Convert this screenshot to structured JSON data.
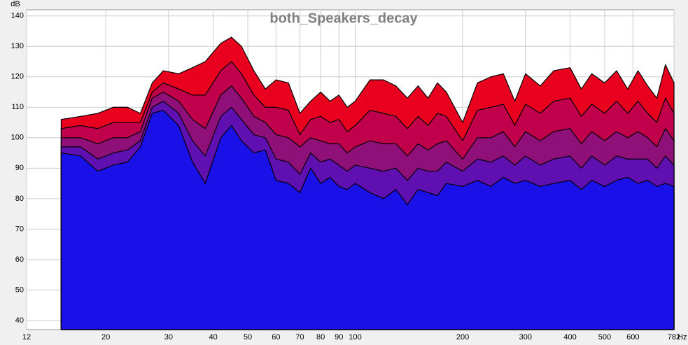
{
  "chart_data": {
    "type": "area",
    "title": "both_Speakers_decay",
    "x_label": "Hz",
    "y_label": "dB",
    "x": [
      15,
      17,
      19,
      21,
      23,
      25,
      27,
      29,
      32,
      35,
      38,
      42,
      45,
      48,
      52,
      56,
      60,
      65,
      70,
      75,
      80,
      85,
      90,
      95,
      100,
      110,
      120,
      130,
      140,
      150,
      160,
      170,
      180,
      200,
      220,
      240,
      260,
      280,
      300,
      330,
      360,
      400,
      430,
      460,
      500,
      540,
      580,
      620,
      660,
      700,
      740,
      782
    ],
    "series": [
      {
        "color": "#e8001e",
        "values": [
          106,
          107,
          108,
          110,
          110,
          108,
          118,
          122,
          121,
          123,
          125,
          131,
          133,
          130,
          122,
          116,
          119,
          118,
          108,
          112,
          115,
          112,
          114,
          110,
          112,
          119,
          119,
          117,
          113,
          117,
          113,
          118,
          115,
          105,
          118,
          120,
          121,
          112,
          121,
          117,
          122,
          123,
          116,
          121,
          118,
          122,
          116,
          122,
          117,
          113,
          124,
          118
        ]
      },
      {
        "color": "#c0004a",
        "values": [
          103,
          104,
          103,
          105,
          105,
          105,
          115,
          118,
          116,
          114,
          114,
          122,
          125,
          121,
          114,
          110,
          110,
          109,
          101,
          106,
          107,
          105,
          106,
          102,
          104,
          109,
          108,
          107,
          103,
          107,
          104,
          108,
          107,
          99,
          109,
          110,
          111,
          104,
          111,
          108,
          112,
          113,
          107,
          111,
          108,
          112,
          108,
          112,
          108,
          105,
          113,
          108
        ]
      },
      {
        "color": "#90107a",
        "values": [
          100,
          100,
          98,
          100,
          100,
          102,
          113,
          115,
          112,
          106,
          103,
          114,
          117,
          113,
          107,
          105,
          101,
          100,
          97,
          100,
          99,
          98,
          98,
          95,
          97,
          99,
          98,
          98,
          94,
          98,
          96,
          98,
          99,
          93,
          100,
          100,
          102,
          97,
          102,
          99,
          102,
          103,
          98,
          102,
          99,
          102,
          100,
          102,
          100,
          97,
          103,
          99
        ]
      },
      {
        "color": "#6010b0",
        "values": [
          97,
          97,
          93,
          95,
          96,
          99,
          110,
          112,
          108,
          99,
          94,
          107,
          110,
          106,
          101,
          100,
          93,
          92,
          88,
          95,
          92,
          93,
          91,
          89,
          91,
          90,
          89,
          90,
          86,
          90,
          89,
          89,
          92,
          89,
          93,
          92,
          94,
          91,
          94,
          91,
          93,
          94,
          90,
          94,
          91,
          94,
          93,
          93,
          93,
          90,
          94,
          91
        ]
      },
      {
        "color": "#1a10e8",
        "values": [
          95,
          94,
          89,
          91,
          92,
          97,
          108,
          109,
          104,
          92,
          85,
          100,
          104,
          99,
          95,
          96,
          86,
          85,
          82,
          90,
          85,
          87,
          84,
          83,
          85,
          82,
          80,
          83,
          78,
          83,
          82,
          81,
          85,
          84,
          86,
          84,
          87,
          85,
          86,
          84,
          85,
          86,
          83,
          86,
          84,
          86,
          87,
          85,
          86,
          84,
          85,
          84
        ]
      }
    ],
    "xlim": [
      12,
      782
    ],
    "ylim": [
      37,
      142
    ],
    "log_x": true,
    "grid": true,
    "xticks": [
      12,
      20,
      30,
      40,
      50,
      60,
      70,
      80,
      90,
      100,
      200,
      300,
      400,
      500,
      600,
      782
    ],
    "yticks": [
      40,
      50,
      60,
      70,
      80,
      90,
      100,
      110,
      120,
      130,
      140
    ]
  }
}
